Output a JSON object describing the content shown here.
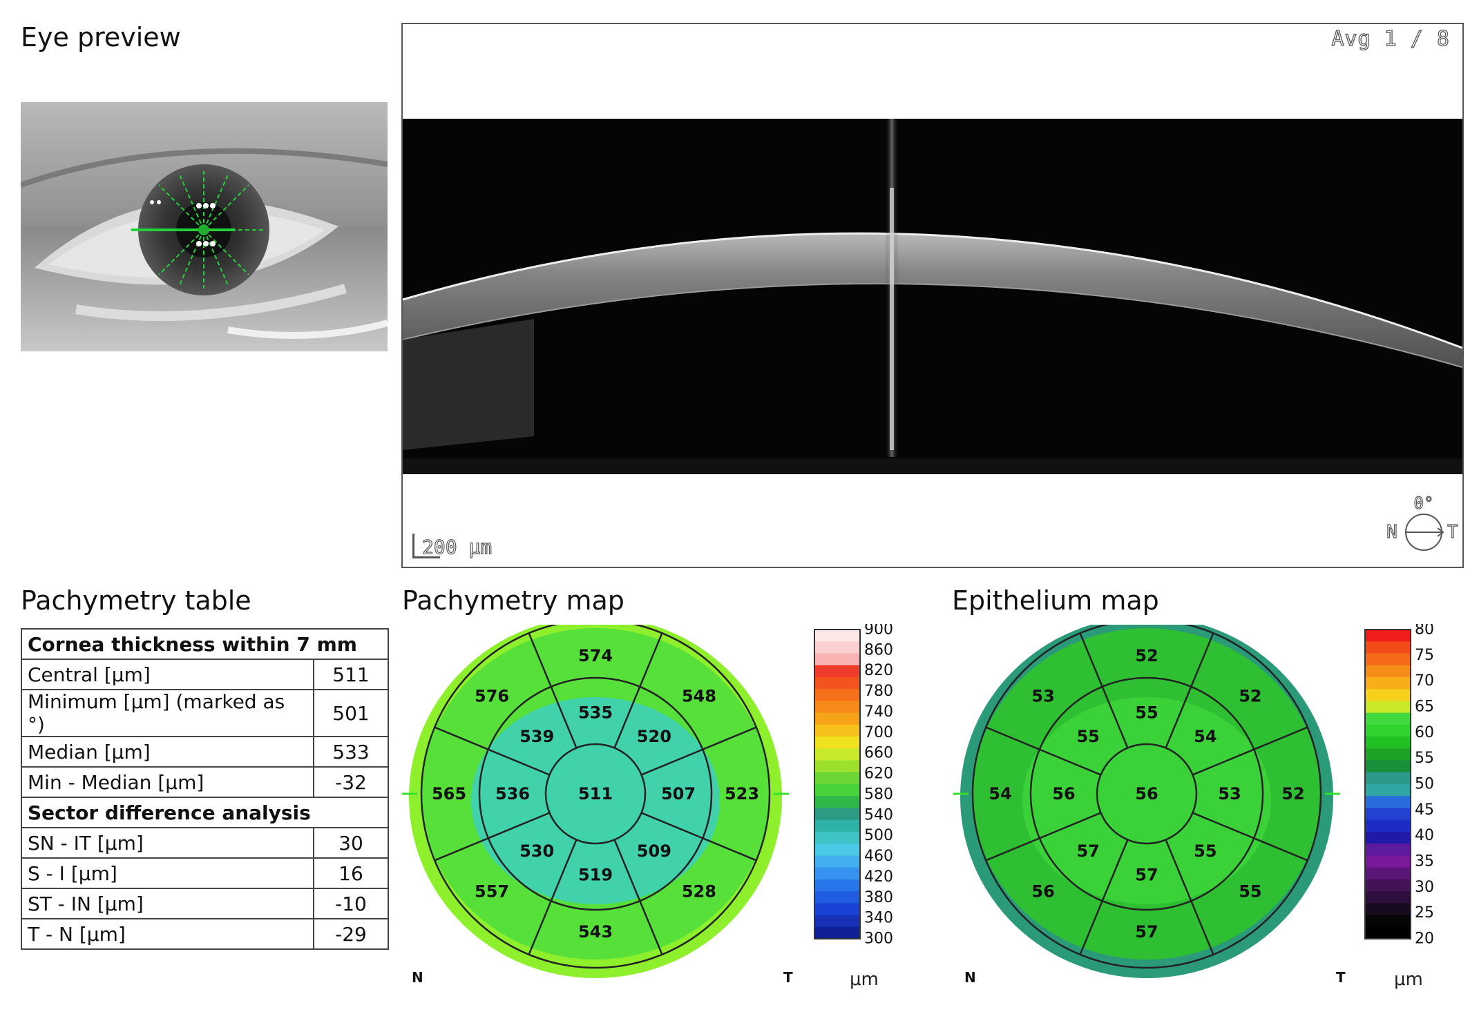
{
  "eye_preview": {
    "title": "Eye preview"
  },
  "oct": {
    "avg_label": "Avg 1 / 8",
    "scale_label": "200 μm",
    "orientation": {
      "angle": "0°",
      "nasal": "N",
      "temporal": "T"
    }
  },
  "pachymetry_table": {
    "title": "Pachymetry table",
    "section1_header": "Cornea thickness within 7 mm",
    "rows1": [
      {
        "label": "Central [μm]",
        "value": "511"
      },
      {
        "label": "Minimum [μm] (marked as °)",
        "value": "501"
      },
      {
        "label": "Median [μm]",
        "value": "533"
      },
      {
        "label": "Min - Median [μm]",
        "value": "-32"
      }
    ],
    "section2_header": "Sector difference analysis",
    "rows2": [
      {
        "label": "SN - IT [μm]",
        "value": "30"
      },
      {
        "label": "S - I [μm]",
        "value": "16"
      },
      {
        "label": "ST - IN [μm]",
        "value": "-10"
      },
      {
        "label": "T - N [μm]",
        "value": "-29"
      }
    ]
  },
  "pachymetry_map": {
    "title": "Pachymetry map",
    "center": "511",
    "ring2": {
      "top": "535",
      "top_right": "520",
      "right": "507",
      "bottom_right": "509",
      "bottom": "519",
      "bottom_left": "530",
      "left": "536",
      "top_left": "539"
    },
    "ring3": {
      "top": "574",
      "top_right": "548",
      "right": "523",
      "bottom_right": "528",
      "bottom": "543",
      "bottom_left": "557",
      "left": "565",
      "top_left": "576"
    },
    "scale": [
      "900",
      "860",
      "820",
      "780",
      "740",
      "700",
      "660",
      "620",
      "580",
      "540",
      "500",
      "460",
      "420",
      "380",
      "340",
      "300"
    ],
    "scale_colors": [
      "#fde8e8",
      "#fcd0d0",
      "#f9b3b3",
      "#f03a2a",
      "#f3541e",
      "#f57019",
      "#f68a18",
      "#f7a31a",
      "#f7c21c",
      "#f0e21e",
      "#c7e929",
      "#9ee12c",
      "#6bd736",
      "#49d33b",
      "#2fb949",
      "#2b9c83",
      "#2fb2a6",
      "#3ec4c5",
      "#4dc9e8",
      "#42b0f0",
      "#3592ef",
      "#2776ea",
      "#1f5ce0",
      "#1a42d4",
      "#1630b6",
      "#111f94"
    ],
    "axis_n": "N",
    "axis_t": "T",
    "unit": "μm"
  },
  "epithelium_map": {
    "title": "Epithelium map",
    "center": "56",
    "ring2": {
      "top": "55",
      "top_right": "54",
      "right": "53",
      "bottom_right": "55",
      "bottom": "57",
      "bottom_left": "57",
      "left": "56",
      "top_left": "55"
    },
    "ring3": {
      "top": "52",
      "top_right": "52",
      "right": "52",
      "bottom_right": "55",
      "bottom": "57",
      "bottom_left": "56",
      "left": "54",
      "top_left": "53"
    },
    "scale": [
      "80",
      "75",
      "70",
      "65",
      "60",
      "55",
      "50",
      "45",
      "40",
      "35",
      "30",
      "25",
      "20"
    ],
    "scale_colors": [
      "#f01c1c",
      "#f34a1a",
      "#f56a18",
      "#f68d18",
      "#f7ae19",
      "#f6d01b",
      "#c9e826",
      "#3fd93d",
      "#2ed32b",
      "#22c123",
      "#1ca326",
      "#178f3b",
      "#2b9a8a",
      "#2fa6a3",
      "#2a6bdd",
      "#2342d0",
      "#1c2cc4",
      "#2019a8",
      "#5e1a9e",
      "#7a1a9a",
      "#5a1677",
      "#431355",
      "#2d0e3c",
      "#170a1f",
      "#050505",
      "#000000"
    ],
    "axis_n": "N",
    "axis_t": "T",
    "unit": "μm"
  }
}
